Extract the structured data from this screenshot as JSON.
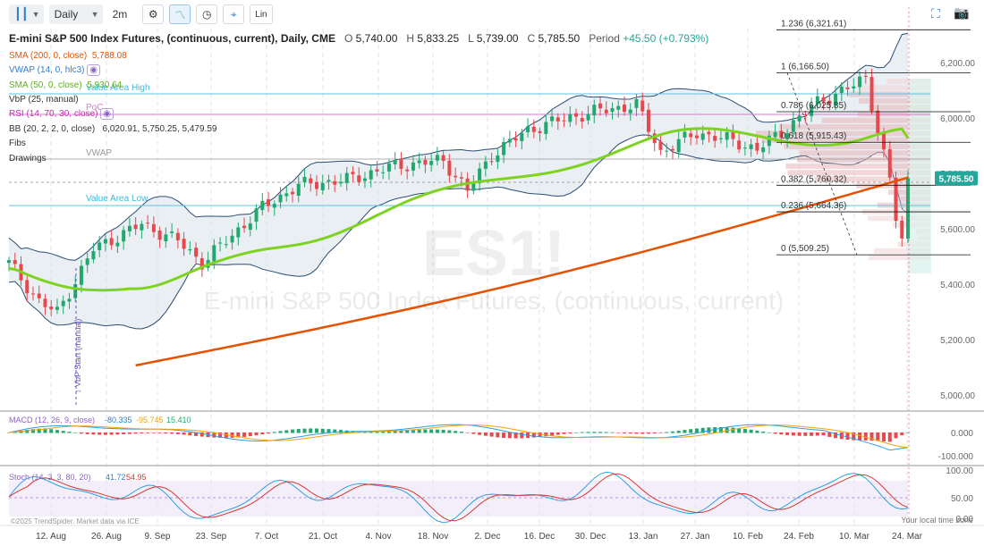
{
  "toolbar": {
    "chart_type_icon": "candlestick-icon",
    "interval": "Daily",
    "range": "2m",
    "settings_icon": "gear-icon",
    "draw_icon": "trend-icon",
    "replay_icon": "clock-icon",
    "compare_icon": "crosshair-icon",
    "scale_label": "Lin",
    "expand_icon": "expand-icon",
    "snapshot_icon": "camera-icon"
  },
  "header": {
    "title": "E-mini S&P 500 Index Futures, (continuous, current), Daily, CME",
    "o_label": "O",
    "o_value": "5,740.00",
    "h_label": "H",
    "h_value": "5,833.25",
    "l_label": "L",
    "l_value": "5,739.00",
    "c_label": "C",
    "c_value": "5,785.50",
    "period_label": "Period",
    "period_value": "+45.50 (+0.793%)"
  },
  "indicators": {
    "sma200": {
      "label": "SMA (200, 0, close)",
      "value": "5,788.08",
      "color": "#e65100"
    },
    "vwap": {
      "label": "VWAP (14, 0, hlc3)",
      "color": "#2f7dd3"
    },
    "sma50": {
      "label": "SMA (50, 0, close)",
      "value": "5,930.64",
      "color": "#7ed321"
    },
    "vbp": {
      "label": "VbP (25, manual)"
    },
    "rsi": {
      "label": "RSI (14, 70, 30, close)",
      "color": "#c232a8"
    },
    "bb": {
      "label": "BB (20, 2, 2, 0, close)",
      "value1": "6,020.91",
      "value2": "5,750.25",
      "value3": "5,479.59"
    },
    "fibs": "Fibs",
    "drawings": "Drawings"
  },
  "annotations": {
    "value_area_high": "Value Area High",
    "value_area_low": "Value Area Low",
    "poc": "PoC",
    "vwap": "VWAP",
    "vbp_start": "↕ VbP Start (manual)"
  },
  "fib_levels": [
    {
      "label": "1.236 (6,321.61)",
      "price": 6321.61
    },
    {
      "label": "1 (6,166.50)",
      "price": 6166.5
    },
    {
      "label": "0.786 (6,025.85)",
      "price": 6025.85
    },
    {
      "label": "0.618 (5,915.43)",
      "price": 5915.43
    },
    {
      "label": "0.382 (5,760.32)",
      "price": 5760.32
    },
    {
      "label": "0.236 (5,664.36)",
      "price": 5664.36
    },
    {
      "label": "0 (5,509.25)",
      "price": 5509.25
    }
  ],
  "watermark": {
    "symbol": "ES1!",
    "name": "E-mini S&P 500 Index Futures, (continuous, current)"
  },
  "price_axis": {
    "ticks": [
      "6,200.00",
      "6,000.00",
      "5,800.00",
      "5,600.00",
      "5,400.00",
      "5,200.00",
      "5,000.00"
    ],
    "current_price": "5,785.50",
    "current_color": "#26a69a"
  },
  "macd": {
    "label": "MACD (12, 26, 9, close)",
    "v1": "-80.335",
    "v2": "-95.745",
    "v3": "15.410",
    "axis": [
      "0.000",
      "-100.000"
    ]
  },
  "stoch": {
    "label": "Stoch (14, 3, 3, 80, 20)",
    "v1": "41.72",
    "v2": "54.95",
    "axis": [
      "100.00",
      "50.00",
      "0.00"
    ]
  },
  "time_axis": {
    "labels": [
      "12. Aug",
      "26. Aug",
      "9. Sep",
      "23. Sep",
      "7. Oct",
      "21. Oct",
      "4. Nov",
      "18. Nov",
      "2. Dec",
      "16. Dec",
      "30. Dec",
      "13. Jan",
      "27. Jan",
      "10. Feb",
      "24. Feb",
      "10. Mar",
      "24. Mar"
    ]
  },
  "footer": {
    "copyright": "©2025 TrendSpider. Market data via ICE",
    "timezone": "Your local time zone"
  },
  "chart_data": {
    "type": "candlestick",
    "interval": "Daily",
    "ohlc_last": {
      "open": 5740.0,
      "high": 5833.25,
      "low": 5739.0,
      "close": 5785.5
    },
    "sma200_last": 5788.08,
    "sma50_last": 5930.64,
    "bollinger_last": {
      "upper": 6020.91,
      "middle": 5750.25,
      "lower": 5479.59
    },
    "macd_last": {
      "macd": -80.335,
      "signal": -95.745,
      "histogram": 15.41
    },
    "stoch_last": {
      "k": 41.72,
      "d": 54.95
    },
    "fib_levels": [
      6321.61,
      6166.5,
      6025.85,
      5915.43,
      5760.32,
      5664.36,
      5509.25
    ]
  }
}
